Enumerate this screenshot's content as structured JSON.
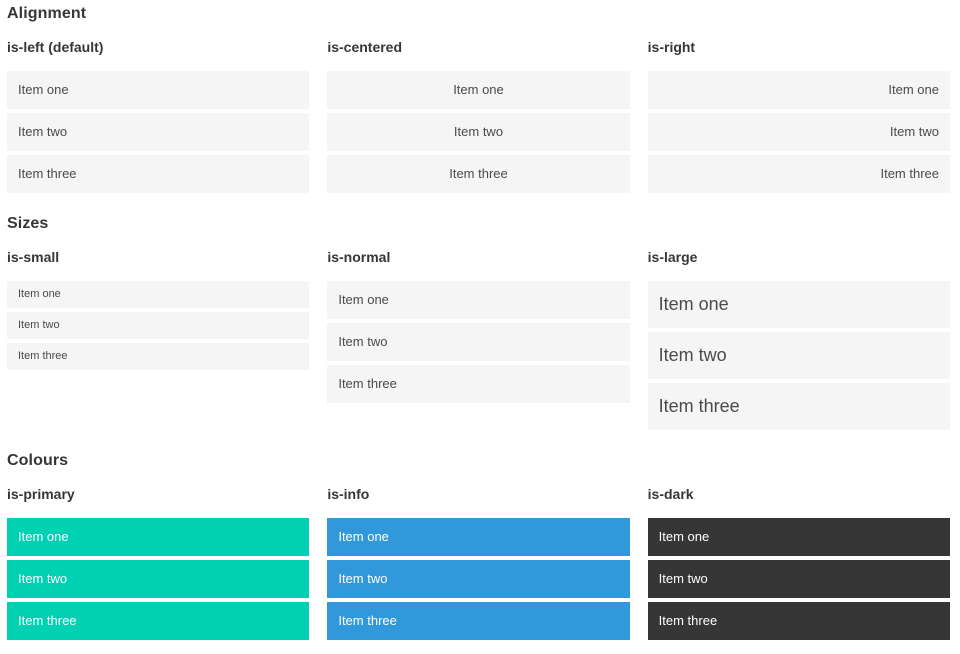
{
  "sections": [
    {
      "title": "Alignment",
      "columns": [
        {
          "heading": "is-left (default)",
          "variant": "is-left",
          "items": [
            "Item one",
            "Item two",
            "Item three"
          ]
        },
        {
          "heading": "is-centered",
          "variant": "is-centered",
          "items": [
            "Item one",
            "Item two",
            "Item three"
          ]
        },
        {
          "heading": "is-right",
          "variant": "is-right",
          "items": [
            "Item one",
            "Item two",
            "Item three"
          ]
        }
      ]
    },
    {
      "title": "Sizes",
      "columns": [
        {
          "heading": "is-small",
          "variant": "is-small",
          "items": [
            "Item one",
            "Item two",
            "Item three"
          ]
        },
        {
          "heading": "is-normal",
          "variant": "is-normal",
          "items": [
            "Item one",
            "Item two",
            "Item three"
          ]
        },
        {
          "heading": "is-large",
          "variant": "is-large",
          "items": [
            "Item one",
            "Item two",
            "Item three"
          ]
        }
      ]
    },
    {
      "title": "Colours",
      "columns": [
        {
          "heading": "is-primary",
          "variant": "is-primary",
          "items": [
            "Item one",
            "Item two",
            "Item three"
          ]
        },
        {
          "heading": "is-info",
          "variant": "is-info",
          "items": [
            "Item one",
            "Item two",
            "Item three"
          ]
        },
        {
          "heading": "is-dark",
          "variant": "is-dark",
          "items": [
            "Item one",
            "Item two",
            "Item three"
          ]
        }
      ]
    }
  ],
  "colors": {
    "primary": "#00d1b2",
    "info": "#3298dc",
    "dark": "#363636",
    "item_background": "#f5f5f5",
    "item_text": "#4a4a4a",
    "heading_text": "#363636",
    "colored_item_text": "#ffffff"
  }
}
